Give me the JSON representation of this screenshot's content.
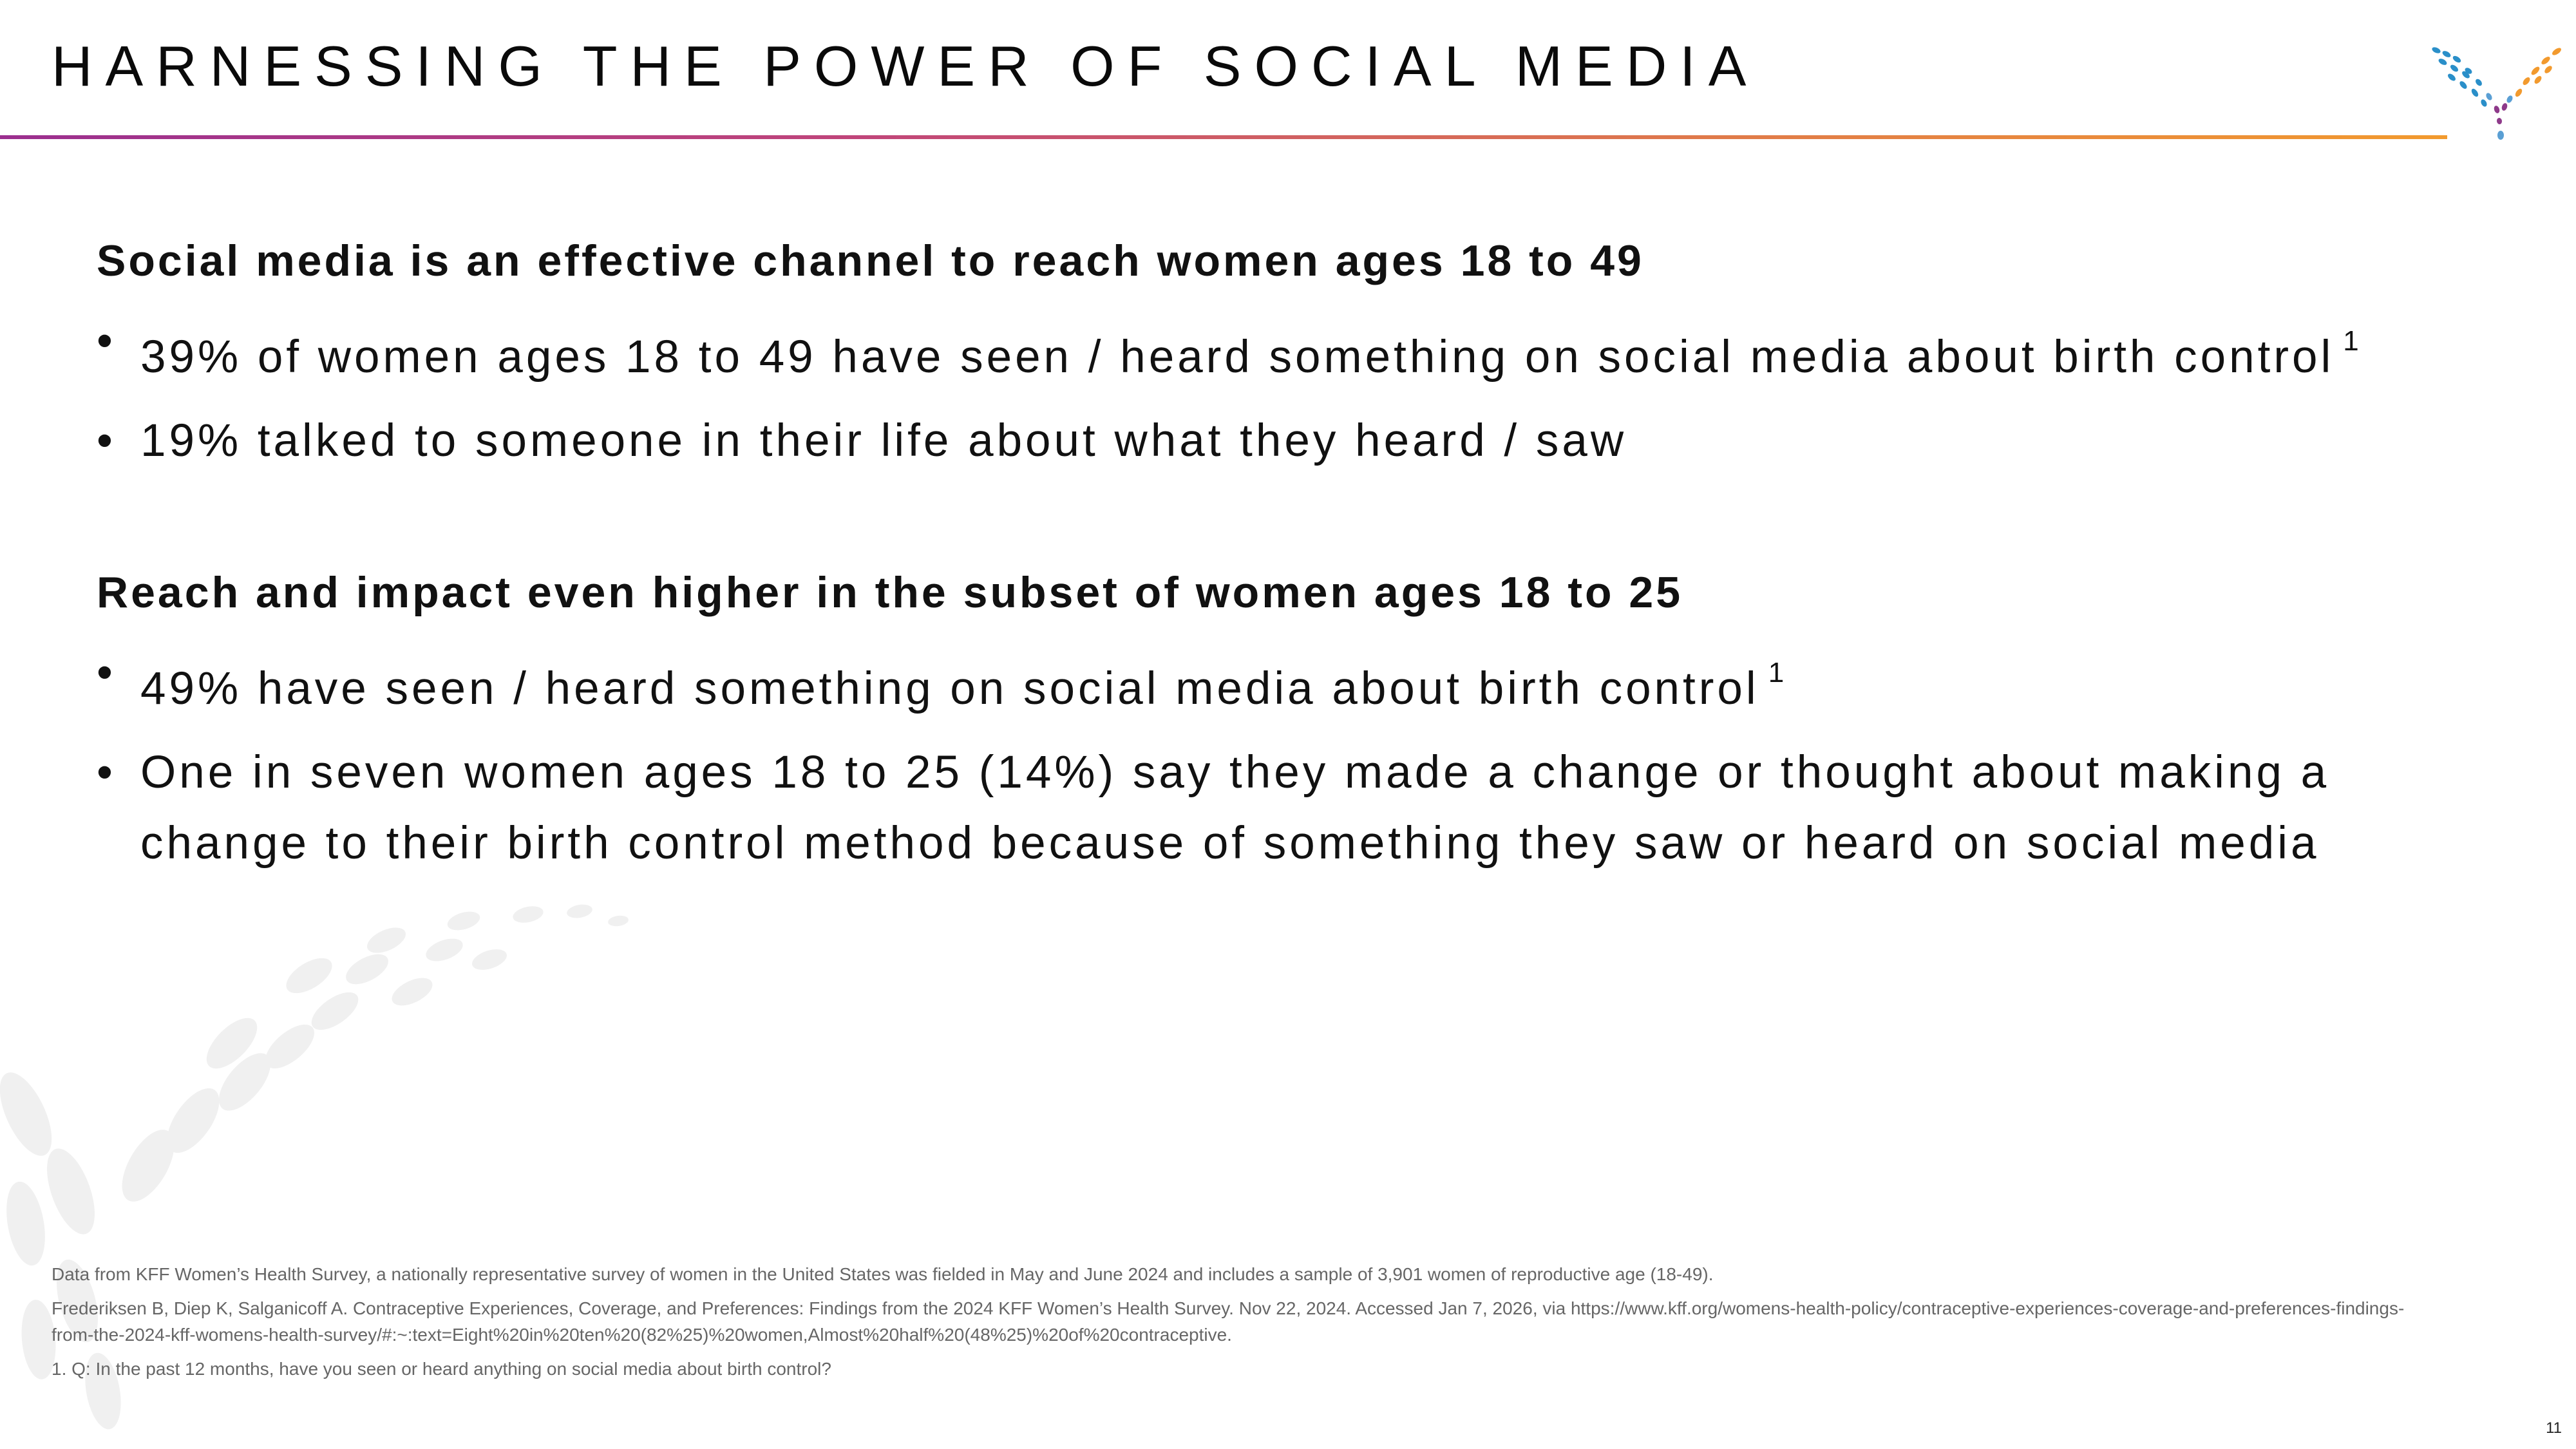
{
  "slide": {
    "title": "HARNESSING THE POWER OF SOCIAL MEDIA",
    "page_number": "11"
  },
  "sections": [
    {
      "heading": "Social media is an effective channel to reach women ages 18 to 49",
      "bullets": [
        {
          "text": "39% of women ages 18 to 49 have seen / heard something on social media about birth control",
          "sup": "1"
        },
        {
          "text": "19% talked to someone in their life about what they heard / saw",
          "sup": ""
        }
      ]
    },
    {
      "heading": "Reach and impact even higher in the subset of women ages 18 to 25",
      "bullets": [
        {
          "text": "49% have seen / heard something on social media about birth control",
          "sup": "1"
        },
        {
          "text": "One in seven women ages 18 to 25 (14%) say they made a change or thought about making a change to their birth control method because of something they saw or heard on social media",
          "sup": ""
        }
      ]
    }
  ],
  "bullet_symbol": "•",
  "footnotes": {
    "data_source": "Data from KFF Women’s Health Survey, a nationally representative survey of women in the United States was fielded in May and June 2024 and includes a sample of 3,901 women of reproductive age (18-49).",
    "citation": "Frederiksen B,  Diep K, Salganicoff A. Contraceptive Experiences, Coverage, and Preferences: Findings from the 2024 KFF Women’s Health Survey. Nov 22, 2024. Accessed Jan 7, 2026, via https://www.kff.org/womens-health-policy/contraceptive-experiences-coverage-and-preferences-findings-from-the-2024-kff-womens-health-survey/#:~:text=Eight%20in%20ten%20(82%25)%20women,Almost%20half%20(48%25)%20of%20contraceptive.",
    "note_1": "1.    Q: In the past 12 months, have you seen or heard anything on social media about birth control?"
  },
  "colors": {
    "rule_start": "#9b2f8f",
    "rule_end": "#f29a2e",
    "logo_blue": "#2a8fc9",
    "logo_orange": "#f29a2e",
    "logo_purple": "#8e3a8a"
  },
  "icons": {
    "logo": "brand-logo-icon",
    "watermark": "leaf-watermark-icon"
  }
}
